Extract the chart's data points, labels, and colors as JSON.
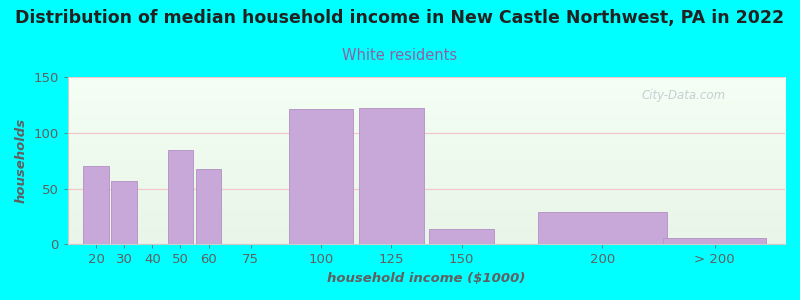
{
  "title": "Distribution of median household income in New Castle Northwest, PA in 2022",
  "subtitle": "White residents",
  "xlabel": "household income ($1000)",
  "ylabel": "households",
  "tick_positions": [
    20,
    30,
    40,
    50,
    60,
    75,
    100,
    125,
    150,
    200,
    240
  ],
  "tick_labels": [
    "20",
    "30",
    "40",
    "50",
    "60",
    "75",
    "100",
    "125",
    "150",
    "200",
    "> 200"
  ],
  "bar_lefts": [
    15,
    25,
    35,
    45,
    55,
    67.5,
    87.5,
    112.5,
    137.5,
    175,
    220
  ],
  "bar_rights": [
    25,
    35,
    45,
    55,
    65,
    87.5,
    112.5,
    137.5,
    162.5,
    225,
    260
  ],
  "bar_values": [
    70,
    57,
    0,
    85,
    68,
    0,
    121,
    122,
    14,
    29,
    6
  ],
  "bar_color": "#c8a8d8",
  "bar_edgecolor": "#b898c8",
  "background_outer": "#00ffff",
  "background_inner": "#eef6e8",
  "title_color": "#222222",
  "subtitle_color": "#9060a0",
  "axis_label_color": "#606060",
  "tick_color": "#606060",
  "gridline_color": "#f0c8c8",
  "ylim": [
    0,
    150
  ],
  "yticks": [
    0,
    50,
    100,
    150
  ],
  "xlim_left": 10,
  "xlim_right": 265,
  "watermark": "City-Data.com",
  "title_fontsize": 12.5,
  "subtitle_fontsize": 10.5,
  "label_fontsize": 9.5
}
